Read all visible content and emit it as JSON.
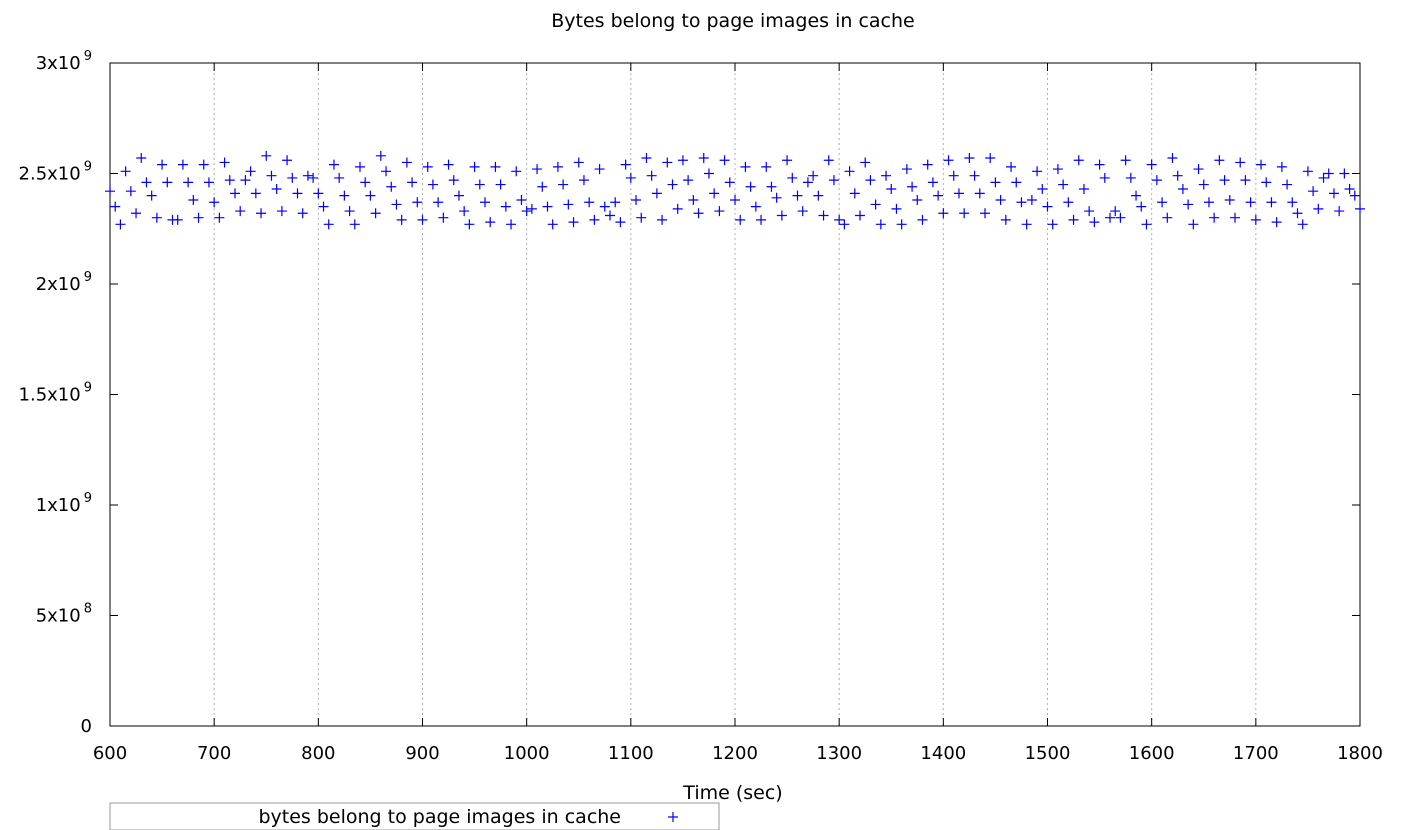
{
  "chart_data": {
    "type": "scatter",
    "title": "Bytes belong to page images in cache",
    "xlabel": "Time (sec)",
    "ylabel": "",
    "xlim": [
      600,
      1800
    ],
    "ylim": [
      0,
      3000000000
    ],
    "x_ticks": [
      600,
      700,
      800,
      900,
      1000,
      1100,
      1200,
      1300,
      1400,
      1500,
      1600,
      1700,
      1800
    ],
    "x_tick_labels": [
      "600",
      "700",
      "800",
      "900",
      "1000",
      "1100",
      "1200",
      "1300",
      "1400",
      "1500",
      "1600",
      "1700",
      "1800"
    ],
    "y_ticks": [
      {
        "value": 0,
        "mantissa": "0",
        "exponent": ""
      },
      {
        "value": 500000000,
        "mantissa": "5x10",
        "exponent": "8"
      },
      {
        "value": 1000000000,
        "mantissa": "1x10",
        "exponent": "9"
      },
      {
        "value": 1500000000,
        "mantissa": "1.5x10",
        "exponent": "9"
      },
      {
        "value": 2000000000,
        "mantissa": "2x10",
        "exponent": "9"
      },
      {
        "value": 2500000000,
        "mantissa": "2.5x10",
        "exponent": "9"
      },
      {
        "value": 3000000000,
        "mantissa": "3x10",
        "exponent": "9"
      }
    ],
    "grid": {
      "x": true,
      "y": false
    },
    "legend_position": "bottom-left",
    "marker": "+",
    "series": [
      {
        "name": "bytes belong to page images in cache",
        "color": "#0000ff",
        "points": [
          [
            600,
            2420000000.0
          ],
          [
            605,
            2350000000.0
          ],
          [
            610,
            2270000000.0
          ],
          [
            615,
            2510000000.0
          ],
          [
            620,
            2420000000.0
          ],
          [
            625,
            2320000000.0
          ],
          [
            630,
            2570000000.0
          ],
          [
            635,
            2460000000.0
          ],
          [
            640,
            2400000000.0
          ],
          [
            645,
            2300000000.0
          ],
          [
            650,
            2540000000.0
          ],
          [
            655,
            2460000000.0
          ],
          [
            660,
            2290000000.0
          ],
          [
            665,
            2290000000.0
          ],
          [
            670,
            2540000000.0
          ],
          [
            675,
            2460000000.0
          ],
          [
            680,
            2380000000.0
          ],
          [
            685,
            2300000000.0
          ],
          [
            690,
            2540000000.0
          ],
          [
            695,
            2460000000.0
          ],
          [
            700,
            2370000000.0
          ],
          [
            705,
            2300000000.0
          ],
          [
            710,
            2550000000.0
          ],
          [
            715,
            2470000000.0
          ],
          [
            720,
            2410000000.0
          ],
          [
            725,
            2330000000.0
          ],
          [
            730,
            2470000000.0
          ],
          [
            735,
            2510000000.0
          ],
          [
            740,
            2410000000.0
          ],
          [
            745,
            2320000000.0
          ],
          [
            750,
            2580000000.0
          ],
          [
            755,
            2490000000.0
          ],
          [
            760,
            2430000000.0
          ],
          [
            765,
            2330000000.0
          ],
          [
            770,
            2560000000.0
          ],
          [
            775,
            2480000000.0
          ],
          [
            780,
            2410000000.0
          ],
          [
            785,
            2320000000.0
          ],
          [
            790,
            2490000000.0
          ],
          [
            795,
            2480000000.0
          ],
          [
            800,
            2410000000.0
          ],
          [
            805,
            2350000000.0
          ],
          [
            810,
            2270000000.0
          ],
          [
            815,
            2540000000.0
          ],
          [
            820,
            2480000000.0
          ],
          [
            825,
            2400000000.0
          ],
          [
            830,
            2330000000.0
          ],
          [
            835,
            2270000000.0
          ],
          [
            840,
            2530000000.0
          ],
          [
            845,
            2460000000.0
          ],
          [
            850,
            2400000000.0
          ],
          [
            855,
            2320000000.0
          ],
          [
            860,
            2580000000.0
          ],
          [
            865,
            2510000000.0
          ],
          [
            870,
            2440000000.0
          ],
          [
            875,
            2360000000.0
          ],
          [
            880,
            2290000000.0
          ],
          [
            885,
            2550000000.0
          ],
          [
            890,
            2460000000.0
          ],
          [
            895,
            2370000000.0
          ],
          [
            900,
            2290000000.0
          ],
          [
            905,
            2530000000.0
          ],
          [
            910,
            2450000000.0
          ],
          [
            915,
            2370000000.0
          ],
          [
            920,
            2300000000.0
          ],
          [
            925,
            2540000000.0
          ],
          [
            930,
            2470000000.0
          ],
          [
            935,
            2400000000.0
          ],
          [
            940,
            2330000000.0
          ],
          [
            945,
            2270000000.0
          ],
          [
            950,
            2530000000.0
          ],
          [
            955,
            2450000000.0
          ],
          [
            960,
            2370000000.0
          ],
          [
            965,
            2280000000.0
          ],
          [
            970,
            2530000000.0
          ],
          [
            975,
            2450000000.0
          ],
          [
            980,
            2350000000.0
          ],
          [
            985,
            2270000000.0
          ],
          [
            990,
            2510000000.0
          ],
          [
            995,
            2380000000.0
          ],
          [
            1000,
            2330000000.0
          ],
          [
            1005,
            2340000000.0
          ],
          [
            1010,
            2520000000.0
          ],
          [
            1015,
            2440000000.0
          ],
          [
            1020,
            2350000000.0
          ],
          [
            1025,
            2270000000.0
          ],
          [
            1030,
            2530000000.0
          ],
          [
            1035,
            2450000000.0
          ],
          [
            1040,
            2360000000.0
          ],
          [
            1045,
            2280000000.0
          ],
          [
            1050,
            2550000000.0
          ],
          [
            1055,
            2470000000.0
          ],
          [
            1060,
            2370000000.0
          ],
          [
            1065,
            2290000000.0
          ],
          [
            1070,
            2520000000.0
          ],
          [
            1075,
            2350000000.0
          ],
          [
            1080,
            2310000000.0
          ],
          [
            1085,
            2370000000.0
          ],
          [
            1090,
            2280000000.0
          ],
          [
            1095,
            2540000000.0
          ],
          [
            1100,
            2480000000.0
          ],
          [
            1105,
            2380000000.0
          ],
          [
            1110,
            2300000000.0
          ],
          [
            1115,
            2570000000.0
          ],
          [
            1120,
            2490000000.0
          ],
          [
            1125,
            2410000000.0
          ],
          [
            1130,
            2290000000.0
          ],
          [
            1135,
            2550000000.0
          ],
          [
            1140,
            2450000000.0
          ],
          [
            1145,
            2340000000.0
          ],
          [
            1150,
            2560000000.0
          ],
          [
            1155,
            2470000000.0
          ],
          [
            1160,
            2380000000.0
          ],
          [
            1165,
            2320000000.0
          ],
          [
            1170,
            2570000000.0
          ],
          [
            1175,
            2500000000.0
          ],
          [
            1180,
            2410000000.0
          ],
          [
            1185,
            2330000000.0
          ],
          [
            1190,
            2560000000.0
          ],
          [
            1195,
            2460000000.0
          ],
          [
            1200,
            2380000000.0
          ],
          [
            1205,
            2290000000.0
          ],
          [
            1210,
            2530000000.0
          ],
          [
            1215,
            2440000000.0
          ],
          [
            1220,
            2350000000.0
          ],
          [
            1225,
            2290000000.0
          ],
          [
            1230,
            2530000000.0
          ],
          [
            1235,
            2440000000.0
          ],
          [
            1240,
            2390000000.0
          ],
          [
            1245,
            2310000000.0
          ],
          [
            1250,
            2560000000.0
          ],
          [
            1255,
            2480000000.0
          ],
          [
            1260,
            2400000000.0
          ],
          [
            1265,
            2330000000.0
          ],
          [
            1270,
            2460000000.0
          ],
          [
            1275,
            2490000000.0
          ],
          [
            1280,
            2400000000.0
          ],
          [
            1285,
            2310000000.0
          ],
          [
            1290,
            2560000000.0
          ],
          [
            1295,
            2470000000.0
          ],
          [
            1300,
            2290000000.0
          ],
          [
            1305,
            2270000000.0
          ],
          [
            1310,
            2510000000.0
          ],
          [
            1315,
            2410000000.0
          ],
          [
            1320,
            2310000000.0
          ],
          [
            1325,
            2550000000.0
          ],
          [
            1330,
            2470000000.0
          ],
          [
            1335,
            2360000000.0
          ],
          [
            1340,
            2270000000.0
          ],
          [
            1345,
            2490000000.0
          ],
          [
            1350,
            2430000000.0
          ],
          [
            1355,
            2340000000.0
          ],
          [
            1360,
            2270000000.0
          ],
          [
            1365,
            2520000000.0
          ],
          [
            1370,
            2440000000.0
          ],
          [
            1375,
            2380000000.0
          ],
          [
            1380,
            2290000000.0
          ],
          [
            1385,
            2540000000.0
          ],
          [
            1390,
            2460000000.0
          ],
          [
            1395,
            2400000000.0
          ],
          [
            1400,
            2320000000.0
          ],
          [
            1405,
            2560000000.0
          ],
          [
            1410,
            2490000000.0
          ],
          [
            1415,
            2410000000.0
          ],
          [
            1420,
            2320000000.0
          ],
          [
            1425,
            2570000000.0
          ],
          [
            1430,
            2490000000.0
          ],
          [
            1435,
            2410000000.0
          ],
          [
            1440,
            2320000000.0
          ],
          [
            1445,
            2570000000.0
          ],
          [
            1450,
            2460000000.0
          ],
          [
            1455,
            2380000000.0
          ],
          [
            1460,
            2290000000.0
          ],
          [
            1465,
            2530000000.0
          ],
          [
            1470,
            2460000000.0
          ],
          [
            1475,
            2370000000.0
          ],
          [
            1480,
            2270000000.0
          ],
          [
            1485,
            2380000000.0
          ],
          [
            1490,
            2510000000.0
          ],
          [
            1495,
            2430000000.0
          ],
          [
            1500,
            2350000000.0
          ],
          [
            1505,
            2270000000.0
          ],
          [
            1510,
            2520000000.0
          ],
          [
            1515,
            2450000000.0
          ],
          [
            1520,
            2370000000.0
          ],
          [
            1525,
            2290000000.0
          ],
          [
            1530,
            2560000000.0
          ],
          [
            1535,
            2430000000.0
          ],
          [
            1540,
            2330000000.0
          ],
          [
            1545,
            2280000000.0
          ],
          [
            1550,
            2540000000.0
          ],
          [
            1555,
            2480000000.0
          ],
          [
            1560,
            2300000000.0
          ],
          [
            1565,
            2330000000.0
          ],
          [
            1570,
            2300000000.0
          ],
          [
            1575,
            2560000000.0
          ],
          [
            1580,
            2480000000.0
          ],
          [
            1585,
            2400000000.0
          ],
          [
            1590,
            2350000000.0
          ],
          [
            1595,
            2270000000.0
          ],
          [
            1600,
            2540000000.0
          ],
          [
            1605,
            2470000000.0
          ],
          [
            1610,
            2370000000.0
          ],
          [
            1615,
            2300000000.0
          ],
          [
            1620,
            2570000000.0
          ],
          [
            1625,
            2490000000.0
          ],
          [
            1630,
            2430000000.0
          ],
          [
            1635,
            2360000000.0
          ],
          [
            1640,
            2270000000.0
          ],
          [
            1645,
            2520000000.0
          ],
          [
            1650,
            2450000000.0
          ],
          [
            1655,
            2370000000.0
          ],
          [
            1660,
            2300000000.0
          ],
          [
            1665,
            2560000000.0
          ],
          [
            1670,
            2470000000.0
          ],
          [
            1675,
            2380000000.0
          ],
          [
            1680,
            2300000000.0
          ],
          [
            1685,
            2550000000.0
          ],
          [
            1690,
            2470000000.0
          ],
          [
            1695,
            2370000000.0
          ],
          [
            1700,
            2290000000.0
          ],
          [
            1705,
            2540000000.0
          ],
          [
            1710,
            2460000000.0
          ],
          [
            1715,
            2370000000.0
          ],
          [
            1720,
            2280000000.0
          ],
          [
            1725,
            2530000000.0
          ],
          [
            1730,
            2450000000.0
          ],
          [
            1735,
            2370000000.0
          ],
          [
            1740,
            2320000000.0
          ],
          [
            1745,
            2270000000.0
          ],
          [
            1750,
            2510000000.0
          ],
          [
            1755,
            2420000000.0
          ],
          [
            1760,
            2340000000.0
          ],
          [
            1765,
            2480000000.0
          ],
          [
            1770,
            2500000000.0
          ],
          [
            1775,
            2410000000.0
          ],
          [
            1780,
            2330000000.0
          ],
          [
            1785,
            2500000000.0
          ],
          [
            1790,
            2430000000.0
          ],
          [
            1795,
            2400000000.0
          ],
          [
            1800,
            2340000000.0
          ]
        ]
      }
    ]
  }
}
